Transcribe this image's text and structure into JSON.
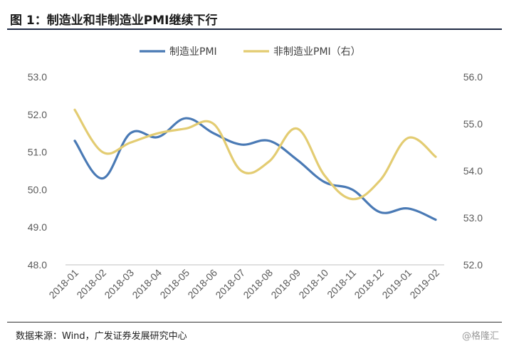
{
  "header": {
    "title": "图 1：制造业和非制造业PMI继续下行"
  },
  "footer": {
    "source": "数据来源：Wind，广发证券发展研究中心",
    "watermark": "@格隆汇"
  },
  "chart_data": {
    "type": "line",
    "title": "",
    "categories": [
      "2018-01",
      "2018-02",
      "2018-03",
      "2018-04",
      "2018-05",
      "2018-06",
      "2018-07",
      "2018-08",
      "2018-09",
      "2018-10",
      "2018-11",
      "2018-12",
      "2019-01",
      "2019-02"
    ],
    "series": [
      {
        "name": "制造业PMI",
        "axis": "left",
        "color": "#4a7ab5",
        "values": [
          51.3,
          50.3,
          51.5,
          51.4,
          51.9,
          51.5,
          51.2,
          51.3,
          50.8,
          50.2,
          50.0,
          49.4,
          49.5,
          49.2
        ]
      },
      {
        "name": "非制造业PMI（右）",
        "axis": "right",
        "color": "#e3cc72",
        "values": [
          55.3,
          54.4,
          54.6,
          54.8,
          54.9,
          55.0,
          54.0,
          54.2,
          54.9,
          53.9,
          53.4,
          53.8,
          54.7,
          54.3
        ]
      }
    ],
    "y_left": {
      "min": 48.0,
      "max": 53.0,
      "ticks": [
        "48.0",
        "49.0",
        "50.0",
        "51.0",
        "52.0",
        "53.0"
      ]
    },
    "y_right": {
      "min": 52.0,
      "max": 56.0,
      "ticks": [
        "52.0",
        "53.0",
        "54.0",
        "55.0",
        "56.0"
      ]
    },
    "legend": "top-center",
    "grid": false,
    "x_label_rotation": -45
  }
}
